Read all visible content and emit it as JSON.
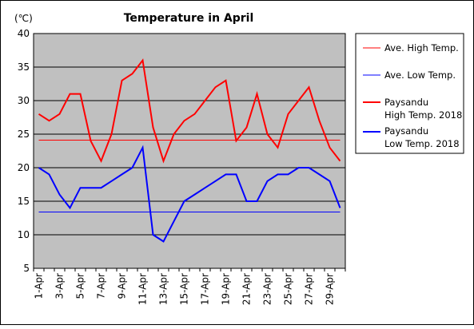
{
  "chart_data": {
    "type": "line",
    "title": "Temperature in April",
    "unit": "(℃)",
    "ylim": [
      5,
      40
    ],
    "y_ticks": [
      5,
      10,
      15,
      20,
      25,
      30,
      35,
      40
    ],
    "x_tick_labels": [
      "1-Apr",
      "3-Apr",
      "5-Apr",
      "7-Apr",
      "9-Apr",
      "11-Apr",
      "13-Apr",
      "15-Apr",
      "17-Apr",
      "19-Apr",
      "21-Apr",
      "23-Apr",
      "25-Apr",
      "27-Apr",
      "29-Apr"
    ],
    "x": [
      1,
      2,
      3,
      4,
      5,
      6,
      7,
      8,
      9,
      10,
      11,
      12,
      13,
      14,
      15,
      16,
      17,
      18,
      19,
      20,
      21,
      22,
      23,
      24,
      25,
      26,
      27,
      28,
      29,
      30
    ],
    "grid": true,
    "legend_position": "right",
    "series": [
      {
        "name": "Ave. High Temp.",
        "color": "#ff0000",
        "style": "thin",
        "values": [
          24.1,
          24.1,
          24.1,
          24.1,
          24.1,
          24.1,
          24.1,
          24.1,
          24.1,
          24.1,
          24.1,
          24.1,
          24.1,
          24.1,
          24.1,
          24.1,
          24.1,
          24.1,
          24.1,
          24.1,
          24.1,
          24.1,
          24.1,
          24.1,
          24.1,
          24.1,
          24.1,
          24.1,
          24.1,
          24.1
        ]
      },
      {
        "name": "Ave. Low Temp.",
        "color": "#0000ff",
        "style": "thin",
        "values": [
          13.4,
          13.4,
          13.4,
          13.4,
          13.4,
          13.4,
          13.4,
          13.4,
          13.4,
          13.4,
          13.4,
          13.4,
          13.4,
          13.4,
          13.4,
          13.4,
          13.4,
          13.4,
          13.4,
          13.4,
          13.4,
          13.4,
          13.4,
          13.4,
          13.4,
          13.4,
          13.4,
          13.4,
          13.4,
          13.4
        ]
      },
      {
        "name": "Paysandu High Temp. 2018",
        "name_lines": [
          "Paysandu",
          "High Temp. 2018"
        ],
        "color": "#ff0000",
        "style": "thick",
        "values": [
          28,
          27,
          28,
          31,
          31,
          24,
          21,
          25,
          33,
          34,
          36,
          26,
          21,
          25,
          27,
          28,
          30,
          32,
          33,
          24,
          26,
          31,
          25,
          23,
          28,
          30,
          32,
          27,
          23,
          21
        ]
      },
      {
        "name": "Paysandu Low Temp. 2018",
        "name_lines": [
          "Paysandu",
          "Low Temp. 2018"
        ],
        "color": "#0000ff",
        "style": "thick",
        "values": [
          20,
          19,
          16,
          14,
          17,
          17,
          17,
          18,
          19,
          20,
          23,
          10,
          9,
          12,
          15,
          16,
          17,
          18,
          19,
          19,
          15,
          15,
          18,
          19,
          19,
          20,
          20,
          19,
          18,
          14
        ]
      }
    ]
  }
}
